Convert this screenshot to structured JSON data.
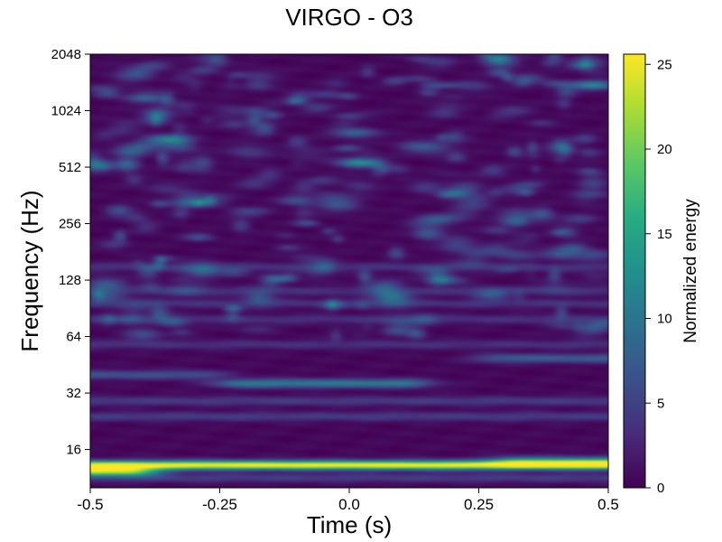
{
  "chart_data": {
    "type": "heatmap",
    "title": "VIRGO - O3",
    "xlabel": "Time (s)",
    "ylabel": "Frequency (Hz)",
    "xlim": [
      -0.5,
      0.5
    ],
    "ylim": [
      10,
      2048
    ],
    "y_scale": "log2",
    "x_ticks": [
      -0.5,
      -0.25,
      0.0,
      0.25,
      0.5
    ],
    "x_tick_labels": [
      "-0.5",
      "-0.25",
      "0.0",
      "0.25",
      "0.5"
    ],
    "y_ticks": [
      16,
      32,
      64,
      128,
      256,
      512,
      1024,
      2048
    ],
    "y_tick_labels": [
      "16",
      "32",
      "64",
      "128",
      "256",
      "512",
      "1024",
      "2048"
    ],
    "colorbar": {
      "label": "Normalized energy",
      "range": [
        0,
        25.6
      ],
      "ticks": [
        0,
        5,
        10,
        15,
        20,
        25
      ],
      "tick_labels": [
        "0",
        "5",
        "10",
        "15",
        "20",
        "25"
      ],
      "colormap": "viridis"
    },
    "background_energy": 1.0,
    "features": [
      {
        "kind": "band",
        "freq": 13.2,
        "t_start": -0.5,
        "t_end": 0.5,
        "energy": 25.5
      },
      {
        "kind": "band",
        "freq": 12.2,
        "t_start": -0.5,
        "t_end": -0.43,
        "energy": 20
      },
      {
        "kind": "band",
        "freq": 13.9,
        "t_start": 0.33,
        "t_end": 0.5,
        "energy": 11
      },
      {
        "kind": "band",
        "freq": 11.3,
        "t_start": -0.5,
        "t_end": 0.5,
        "energy": 4
      },
      {
        "kind": "band",
        "freq": 36,
        "t_start": -0.2,
        "t_end": 0.1,
        "energy": 10
      },
      {
        "kind": "band",
        "freq": 49,
        "t_start": 0.3,
        "t_end": 0.5,
        "energy": 7
      },
      {
        "kind": "band",
        "freq": 40,
        "t_start": -0.5,
        "t_end": -0.3,
        "energy": 6
      },
      {
        "kind": "band",
        "freq": 29,
        "t_start": -0.5,
        "t_end": 0.5,
        "energy": 4
      },
      {
        "kind": "band",
        "freq": 24,
        "t_start": -0.5,
        "t_end": 0.5,
        "energy": 4
      },
      {
        "kind": "band",
        "freq": 58,
        "t_start": -0.5,
        "t_end": 0.5,
        "energy": 3
      },
      {
        "kind": "band",
        "freq": 79,
        "t_start": -0.5,
        "t_end": 0.5,
        "energy": 3
      },
      {
        "kind": "band",
        "freq": 96,
        "t_start": -0.5,
        "t_end": 0.5,
        "energy": 3
      },
      {
        "kind": "band",
        "freq": 112,
        "t_start": -0.5,
        "t_end": 0.5,
        "energy": 3
      },
      {
        "kind": "band",
        "freq": 150,
        "t_start": -0.5,
        "t_end": 0.5,
        "energy": 3
      },
      {
        "kind": "blob",
        "t": 0.02,
        "freq": 540,
        "energy": 12
      },
      {
        "kind": "blob",
        "t": -0.35,
        "freq": 720,
        "energy": 10
      },
      {
        "kind": "blob",
        "t": 0.47,
        "freq": 1400,
        "energy": 11
      },
      {
        "kind": "blob",
        "t": 0.01,
        "freq": 780,
        "energy": 8
      },
      {
        "kind": "blob",
        "t": 0.17,
        "freq": 270,
        "energy": 7
      },
      {
        "kind": "blob",
        "t": -0.3,
        "freq": 330,
        "energy": 6
      }
    ]
  }
}
